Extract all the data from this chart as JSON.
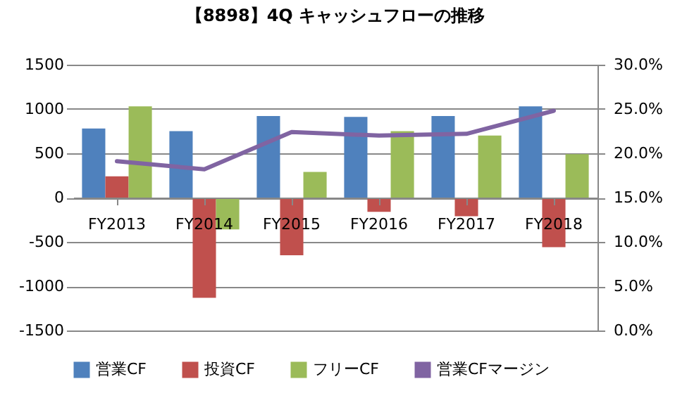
{
  "chart_data": {
    "type": "bar",
    "title": "【8898】4Q キャッシュフローの推移",
    "categories": [
      "FY2013",
      "FY2014",
      "FY2015",
      "FY2016",
      "FY2017",
      "FY2018"
    ],
    "series": [
      {
        "name": "営業CF",
        "color": "#4f81bd",
        "values": [
          780,
          750,
          920,
          910,
          920,
          1030
        ]
      },
      {
        "name": "投資CF",
        "color": "#c0504d",
        "values": [
          240,
          -1130,
          -650,
          -160,
          -210,
          -560
        ]
      },
      {
        "name": "フリーCF",
        "color": "#9bbb59",
        "values": [
          1030,
          -360,
          290,
          750,
          700,
          490
        ]
      },
      {
        "name": "営業CFマージン",
        "type": "line",
        "axis": "y2",
        "color": "#8064a2",
        "values": [
          19.1,
          18.2,
          22.4,
          22.0,
          22.2,
          24.8
        ]
      }
    ],
    "ylim": [
      -1500,
      1500
    ],
    "yticks": [
      -1500,
      -1000,
      -500,
      0,
      500,
      1000,
      1500
    ],
    "y2lim": [
      0,
      30
    ],
    "y2ticks": [
      {
        "value": 0,
        "label": "0.0%"
      },
      {
        "value": 5,
        "label": "5.0%"
      },
      {
        "value": 10,
        "label": "10.0%"
      },
      {
        "value": 15,
        "label": "15.0%"
      },
      {
        "value": 20,
        "label": "20.0%"
      },
      {
        "value": 25,
        "label": "25.0%"
      },
      {
        "value": 30,
        "label": "30.0%"
      }
    ],
    "grid": "y",
    "legend": "bottom"
  }
}
